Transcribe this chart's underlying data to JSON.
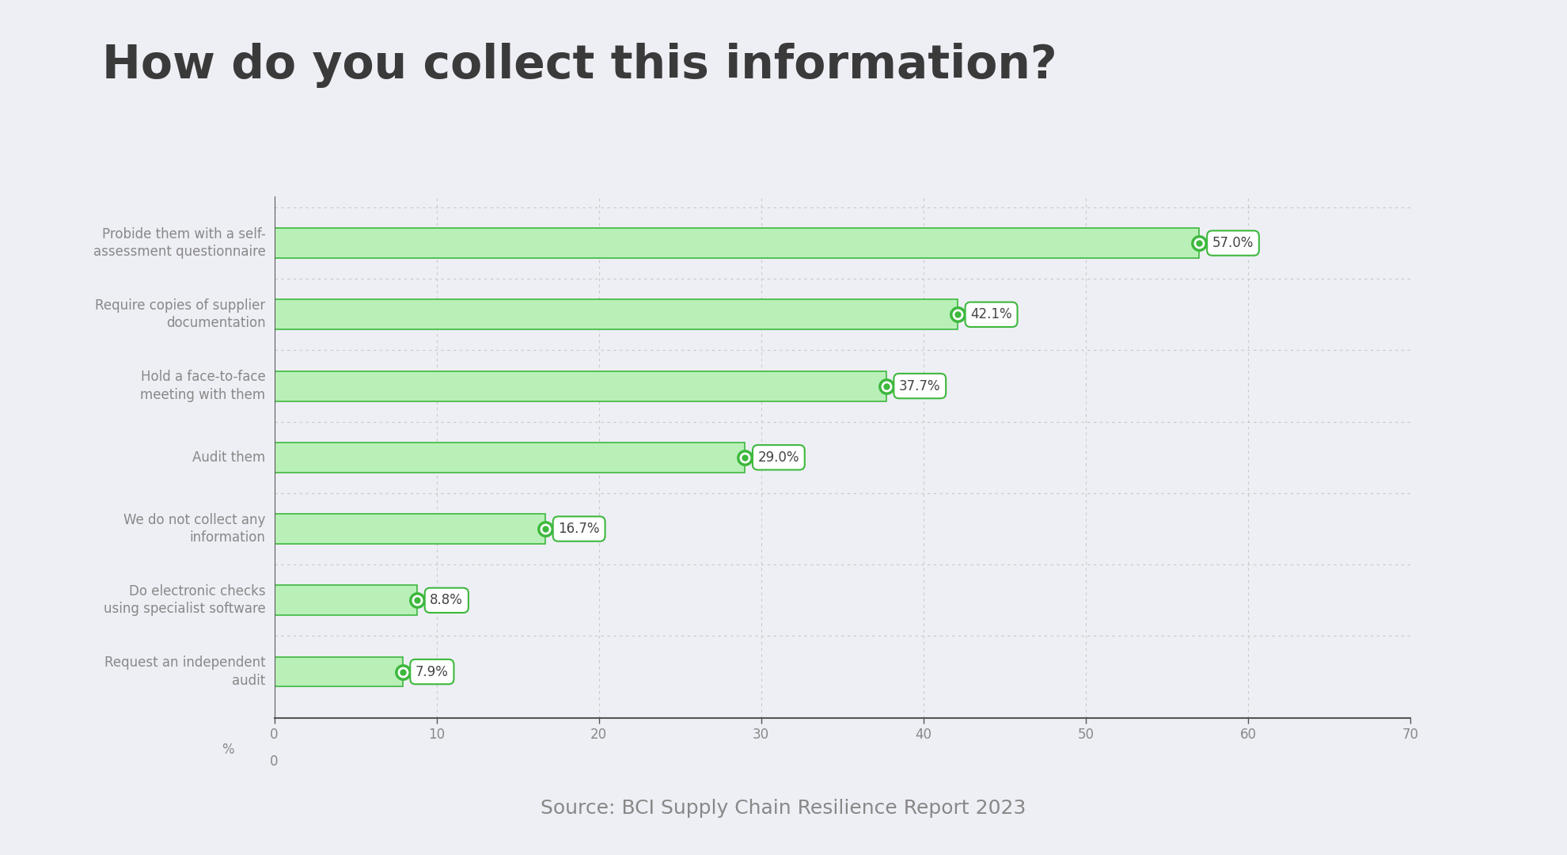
{
  "title": "How do you collect this information?",
  "source": "Source: BCI Supply Chain Resilience Report 2023",
  "categories": [
    "Probide them with a self-\nassessment questionnaire",
    "Require copies of supplier\ndocumentation",
    "Hold a face-to-face\nmeeting with them",
    "Audit them",
    "We do not collect any\ninformation",
    "Do electronic checks\nusing specialist software",
    "Request an independent\naudit"
  ],
  "values": [
    57.0,
    42.1,
    37.7,
    29.0,
    16.7,
    8.8,
    7.9
  ],
  "labels": [
    "57.0%",
    "42.1%",
    "37.7%",
    "29.0%",
    "16.7%",
    "8.8%",
    "7.9%"
  ],
  "bar_color": "#b8f0b8",
  "bar_edge_color": "#3db83d",
  "dot_outer_color": "#3db83d",
  "dot_inner_color": "#ffffff",
  "dot_center_color": "#3db83d",
  "label_box_facecolor": "#ffffff",
  "label_box_edgecolor": "#3db83d",
  "label_text_color": "#444444",
  "background_color": "#eeeff5",
  "title_color": "#3a3a3a",
  "axis_label_color": "#888888",
  "grid_color": "#c8c8c8",
  "axis_line_color": "#555555",
  "xlim": [
    0,
    70
  ],
  "xticks": [
    0,
    10,
    20,
    30,
    40,
    50,
    60,
    70
  ],
  "title_fontsize": 42,
  "cat_fontsize": 12,
  "val_fontsize": 12,
  "source_fontsize": 18,
  "bar_height": 0.42
}
